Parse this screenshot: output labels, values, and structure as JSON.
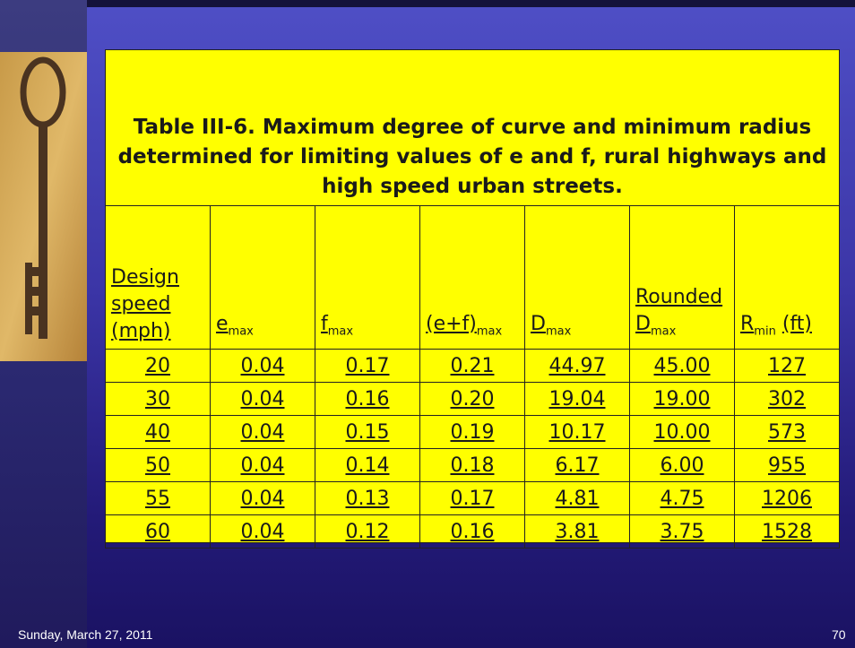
{
  "title": "Table III-6. Maximum degree of curve and minimum radius determined for limiting values of e and f, rural highways and high speed urban streets.",
  "table": {
    "headers": [
      {
        "text": "Design speed (mph)"
      },
      {
        "text": "e",
        "sub": "max"
      },
      {
        "text": "f",
        "sub": "max"
      },
      {
        "text": "(e+f)",
        "sub": "max"
      },
      {
        "text": "D",
        "sub": "max"
      },
      {
        "pre": "Rounded",
        "text": "D",
        "sub": "max"
      },
      {
        "text": "R",
        "sub": "min",
        "post": "(ft)"
      }
    ],
    "rows": [
      [
        "20",
        "0.04",
        "0.17",
        "0.21",
        "44.97",
        "45.00",
        "127"
      ],
      [
        "30",
        "0.04",
        "0.16",
        "0.20",
        "19.04",
        "19.00",
        "302"
      ],
      [
        "40",
        "0.04",
        "0.15",
        "0.19",
        "10.17",
        "10.00",
        "573"
      ],
      [
        "50",
        "0.04",
        "0.14",
        "0.18",
        "6.17",
        "6.00",
        "955"
      ],
      [
        "55",
        "0.04",
        "0.13",
        "0.17",
        "4.81",
        "4.75",
        "1206"
      ],
      [
        "60",
        "0.04",
        "0.12",
        "0.16",
        "3.81",
        "3.75",
        "1528"
      ]
    ]
  },
  "footer": {
    "date": "Sunday, March 27, 2011",
    "page": "70"
  }
}
